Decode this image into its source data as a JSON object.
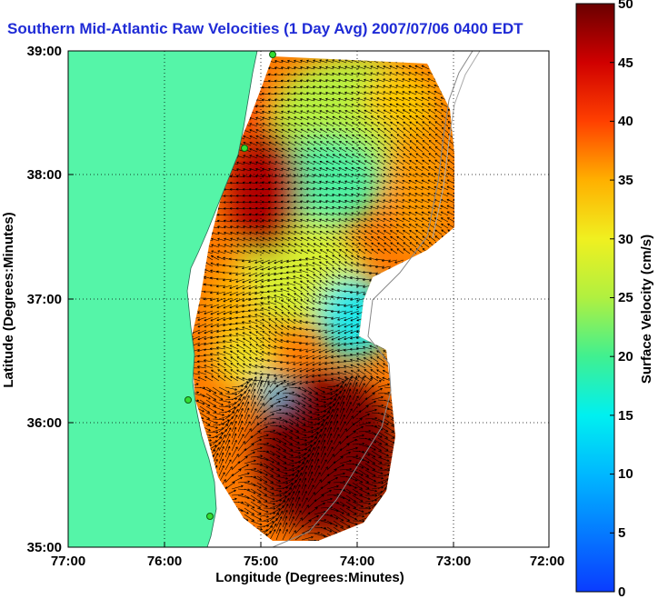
{
  "title": "Southern Mid-Atlantic Raw Velocities (1 Day Avg) 2007/07/06 0400 EDT",
  "xlabel": "Longitude (Degrees:Minutes)",
  "ylabel": "Latitude (Degrees:Minutes)",
  "xticks": [
    "77:00",
    "76:00",
    "75:00",
    "74:00",
    "73:00",
    "72:00"
  ],
  "yticks": [
    "39:00",
    "38:00",
    "37:00",
    "36:00",
    "35:00"
  ],
  "colorbar": {
    "label": "Surface Velocity (cm/s)",
    "ticks": [
      "0",
      "5",
      "10",
      "15",
      "20",
      "25",
      "30",
      "35",
      "40",
      "45",
      "50"
    ],
    "min": 0,
    "max": 50
  },
  "colors": {
    "land": "#55f5a8",
    "ocean": "#ffffff",
    "title": "#1f2bd6",
    "arrow": "#000000"
  },
  "map_extent": {
    "lon": [
      -77,
      -72
    ],
    "lat": [
      35,
      39
    ]
  }
}
